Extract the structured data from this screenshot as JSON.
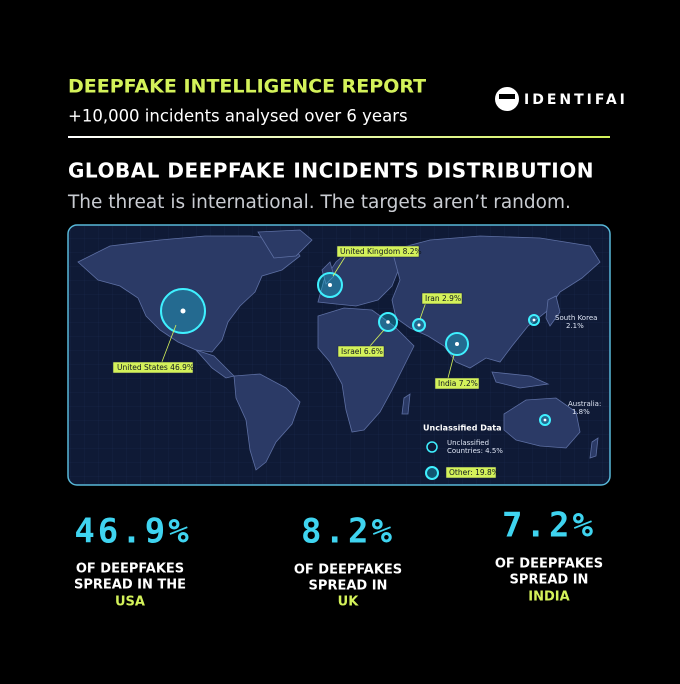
{
  "header": {
    "title": "DEEPFAKE INTELLIGENCE REPORT",
    "subtitle": "+10,000 incidents analysed over 6 years",
    "logo": "IDENTIFAI"
  },
  "section": {
    "title": "GLOBAL DEEPFAKE INCIDENTS DISTRIBUTION",
    "subtitle": "The threat is international. The targets aren’t random."
  },
  "map": {
    "markers": [
      {
        "label": "United Kingdom 8.2%"
      },
      {
        "label": "Iran 2.9%"
      },
      {
        "label": "Israel 6.6%"
      },
      {
        "label": "United States 46.9%"
      },
      {
        "label": "India 7.2%"
      },
      {
        "label_lines": [
          "South Korea",
          "2.1%"
        ]
      },
      {
        "label_lines": [
          "Australia:",
          "1.8%"
        ]
      }
    ],
    "legend": {
      "title": "Unclassified Data",
      "items": [
        {
          "label_lines": [
            "Unclassified",
            "Countries: 4.5%"
          ]
        },
        {
          "label": "Other: 19.8%"
        }
      ]
    }
  },
  "stats": [
    {
      "value": "46.9%",
      "lines": [
        "OF DEEPFAKES",
        "SPREAD IN THE"
      ],
      "region": "USA"
    },
    {
      "value": "8.2%",
      "lines": [
        "OF DEEPFAKES",
        "SPREAD IN"
      ],
      "region": "UK"
    },
    {
      "value": "7.2%",
      "lines": [
        "OF DEEPFAKES",
        "SPREAD IN"
      ],
      "region": "INDIA"
    }
  ]
}
